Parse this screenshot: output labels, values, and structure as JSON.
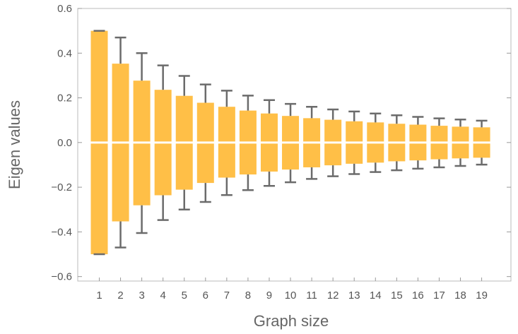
{
  "chart_data": {
    "type": "bar",
    "xlabel": "Graph size",
    "ylabel": "Eigen values",
    "categories": [
      "1",
      "2",
      "3",
      "4",
      "5",
      "6",
      "7",
      "8",
      "9",
      "10",
      "11",
      "12",
      "13",
      "14",
      "15",
      "16",
      "17",
      "18",
      "19"
    ],
    "series": [
      {
        "values_upper": [
          0.5,
          0.353,
          0.277,
          0.236,
          0.209,
          0.178,
          0.16,
          0.143,
          0.13,
          0.119,
          0.109,
          0.102,
          0.095,
          0.09,
          0.084,
          0.08,
          0.075,
          0.071,
          0.068
        ],
        "values_lower": [
          -0.5,
          -0.353,
          -0.281,
          -0.236,
          -0.211,
          -0.181,
          -0.157,
          -0.143,
          -0.13,
          -0.121,
          -0.111,
          -0.102,
          -0.095,
          -0.09,
          -0.084,
          -0.08,
          -0.075,
          -0.071,
          -0.068
        ]
      }
    ],
    "error_bars": {
      "upper": [
        0.5,
        0.47,
        0.4,
        0.345,
        0.298,
        0.26,
        0.232,
        0.21,
        0.19,
        0.173,
        0.16,
        0.148,
        0.139,
        0.13,
        0.122,
        0.115,
        0.108,
        0.103,
        0.098
      ],
      "lower": [
        -0.5,
        -0.47,
        -0.405,
        -0.347,
        -0.3,
        -0.266,
        -0.235,
        -0.213,
        -0.194,
        -0.178,
        -0.163,
        -0.151,
        -0.141,
        -0.132,
        -0.124,
        -0.117,
        -0.111,
        -0.105,
        -0.099
      ]
    },
    "ylim": [
      -0.62,
      0.6
    ],
    "yticks": [
      "0.6",
      "0.4",
      "0.2",
      "0.0",
      "−0.2",
      "−0.4",
      "−0.6"
    ],
    "ytick_values": [
      0.6,
      0.4,
      0.2,
      0.0,
      -0.2,
      -0.4,
      -0.6
    ],
    "grid": false,
    "colors": {
      "bar": "#ffbf47",
      "error_bar": "#6b6b6b",
      "frame": "#bbbbbb",
      "zero_line": "#ffffff"
    }
  }
}
